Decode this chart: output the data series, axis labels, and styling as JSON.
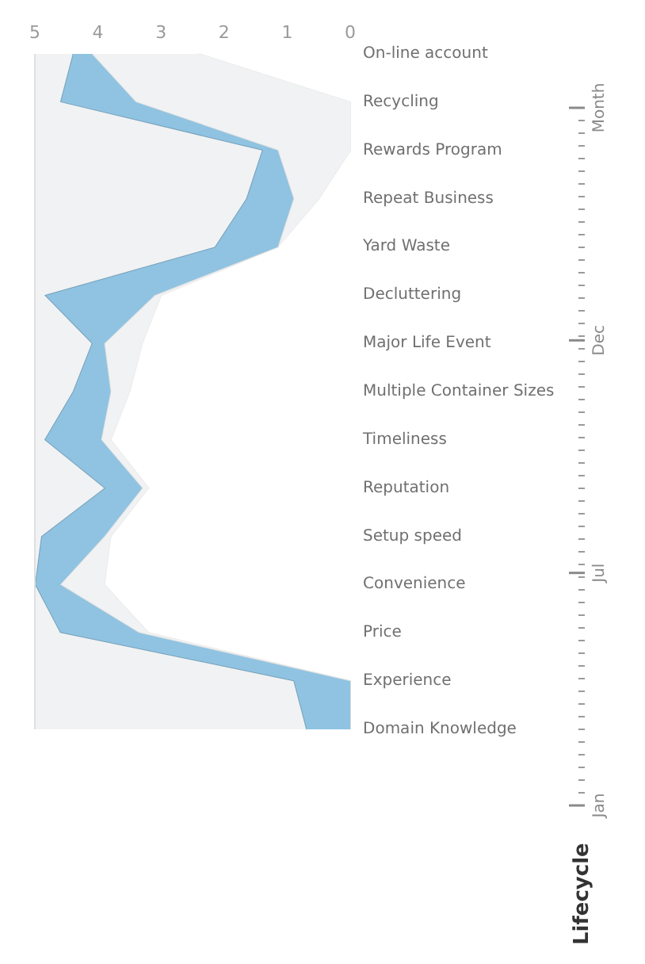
{
  "chart_data": [
    {
      "type": "area",
      "orientation": "horizontal",
      "stacked": true,
      "categories": [
        "On-line account",
        "Recycling",
        "Rewards Program",
        "Repeat Business",
        "Yard Waste",
        "Decluttering",
        "Major Life Event",
        "Multiple Container Sizes",
        "Timeliness",
        "Reputation",
        "Setup speed",
        "Convenience",
        "Price",
        "Experience",
        "Domain Knowledge"
      ],
      "xlim": [
        5,
        0
      ],
      "xticks": [
        5,
        4,
        3,
        2,
        1,
        0
      ],
      "grid": false,
      "series": [
        {
          "color": "#ffffff",
          "values": [
            2.4,
            0,
            0,
            0.5,
            1.15,
            3.0,
            3.3,
            3.5,
            3.8,
            3.2,
            3.8,
            3.9,
            3.2,
            0,
            0
          ]
        },
        {
          "color": "#f1f2f4",
          "values": [
            1.7,
            3.4,
            1.15,
            0.4,
            0,
            0.1,
            0.6,
            0.3,
            0.15,
            0.1,
            0.1,
            0.7,
            0.15,
            0,
            0
          ]
        },
        {
          "color": "#8fc3e1",
          "values": [
            0.3,
            1.2,
            0.25,
            0.75,
            1.0,
            1.75,
            0.2,
            0.6,
            0.9,
            0.6,
            1.0,
            0.4,
            1.25,
            0.9,
            0.7
          ]
        },
        {
          "color": "#f1f2f4",
          "values": [
            0.6,
            0.4,
            3.6,
            3.35,
            2.85,
            0.15,
            0.9,
            0.6,
            0.15,
            1.1,
            0.1,
            0,
            0.4,
            4.1,
            4.3
          ]
        }
      ]
    },
    {
      "type": "other",
      "title": "Lifecycle",
      "annotations": [
        "Jan",
        "Jul",
        "Dec",
        "Month"
      ]
    }
  ]
}
